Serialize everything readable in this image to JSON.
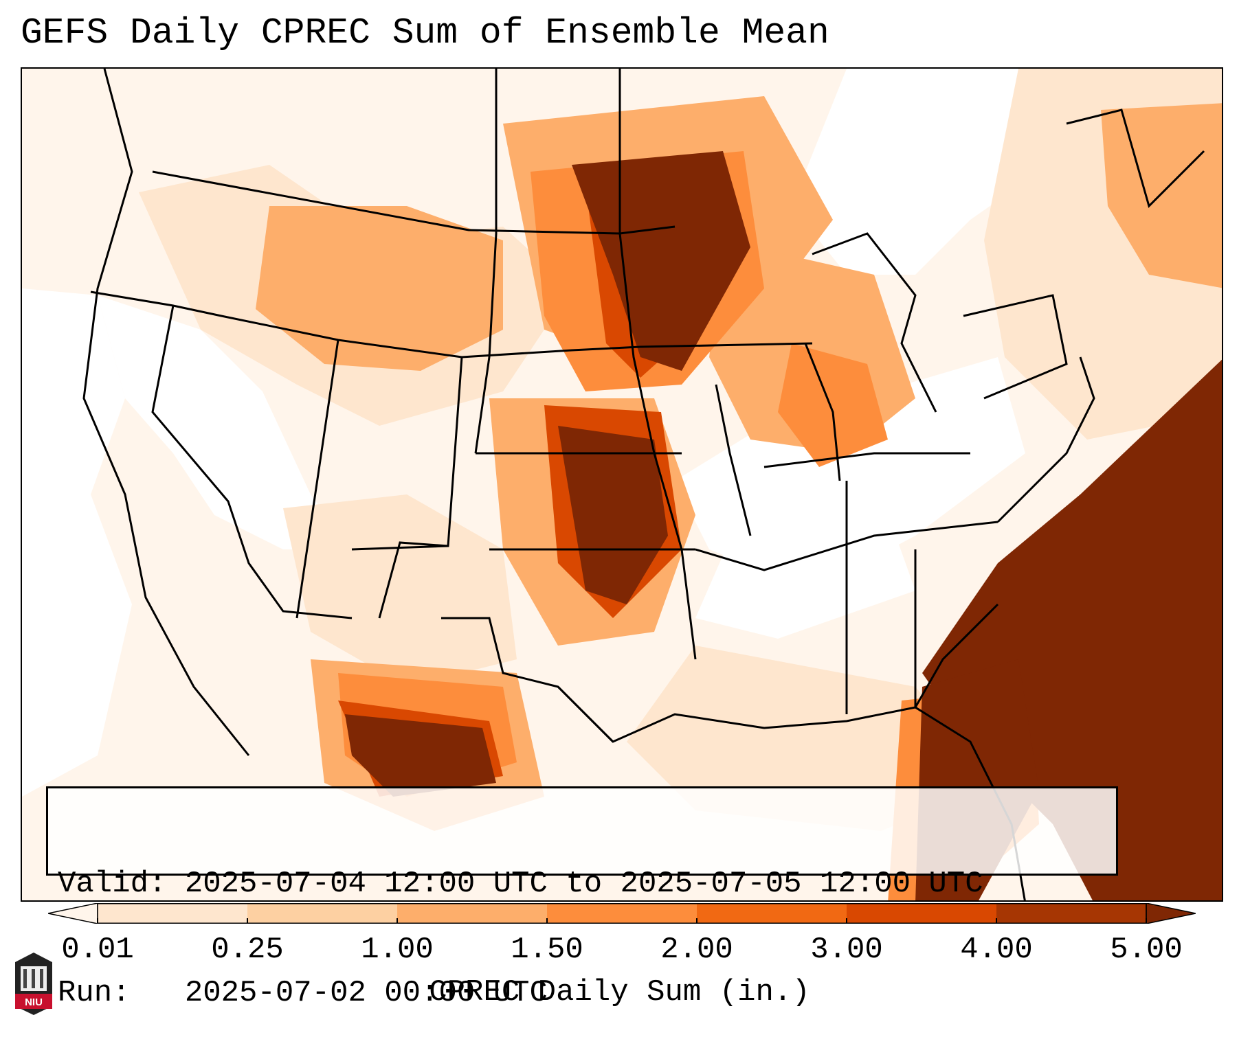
{
  "title": "GEFS Daily CPREC Sum of Ensemble Mean",
  "info": {
    "valid_line": "Valid: 2025-07-04 12:00 UTC to 2025-07-05 12:00 UTC",
    "run_line": "Run:   2025-07-02 00:00 UTC"
  },
  "colorbar": {
    "label": "CPREC Daily Sum (in.)",
    "levels": [
      "0.01",
      "0.25",
      "1.00",
      "1.50",
      "2.00",
      "3.00",
      "4.00",
      "5.00"
    ],
    "colors": [
      "#fff5eb",
      "#fee6ce",
      "#fdd0a2",
      "#fdae6b",
      "#fd8d3c",
      "#f16913",
      "#d94801",
      "#a63603",
      "#7f2704"
    ]
  },
  "logo": {
    "text": "NIU",
    "name": "niu-logo"
  }
}
